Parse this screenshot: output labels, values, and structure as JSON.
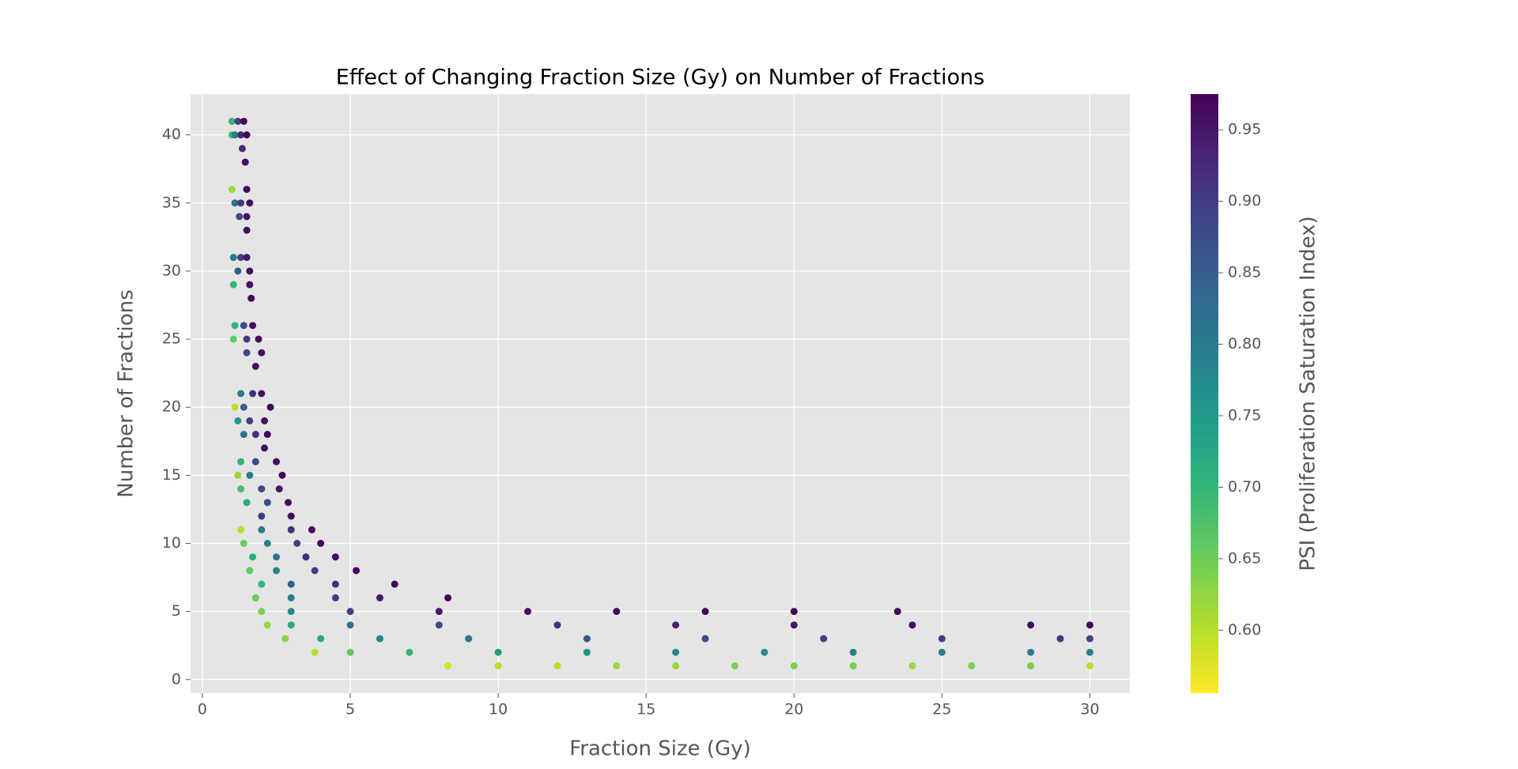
{
  "chart_data": {
    "type": "scatter",
    "title": "Effect of Changing Fraction Size (Gy) on Number of Fractions",
    "xlabel": "Fraction Size (Gy)",
    "ylabel": "Number of Fractions",
    "colorbar_label": "PSI (Proliferation Saturation Index)",
    "colormap": "viridis_r",
    "background": "#e5e5e5",
    "grid": true,
    "xlim": [
      -0.4,
      31.35
    ],
    "ylim": [
      -1,
      43
    ],
    "clim": [
      0.556,
      0.975
    ],
    "xticks": [
      0,
      5,
      10,
      15,
      20,
      25,
      30
    ],
    "yticks": [
      0,
      5,
      10,
      15,
      20,
      25,
      30,
      35,
      40
    ],
    "cticks": [
      {
        "value": 0.6,
        "label": "0.60"
      },
      {
        "value": 0.65,
        "label": "0.65"
      },
      {
        "value": 0.7,
        "label": "0.70"
      },
      {
        "value": 0.75,
        "label": "0.75"
      },
      {
        "value": 0.8,
        "label": "0.80"
      },
      {
        "value": 0.85,
        "label": "0.85"
      },
      {
        "value": 0.9,
        "label": "0.90"
      },
      {
        "value": 0.95,
        "label": "0.95"
      }
    ],
    "x": [
      1.0,
      1.2,
      1.4,
      1.0,
      1.1,
      1.3,
      1.5,
      1.35,
      1.45,
      1.0,
      1.5,
      1.1,
      1.3,
      1.6,
      1.25,
      1.5,
      1.5,
      1.05,
      1.3,
      1.5,
      1.2,
      1.6,
      1.05,
      1.6,
      1.65,
      1.1,
      1.4,
      1.7,
      1.05,
      1.5,
      1.9,
      1.5,
      2.0,
      1.8,
      1.3,
      1.7,
      2.0,
      1.1,
      1.4,
      2.3,
      1.2,
      1.6,
      2.1,
      1.4,
      1.8,
      2.2,
      2.1,
      1.3,
      1.8,
      2.5,
      1.2,
      1.6,
      2.7,
      1.3,
      2.0,
      2.6,
      1.5,
      2.2,
      2.9,
      2.0,
      3.0,
      1.3,
      2.0,
      3.0,
      3.7,
      1.4,
      2.2,
      3.2,
      4.0,
      1.7,
      2.5,
      3.5,
      4.5,
      1.6,
      2.5,
      3.8,
      5.2,
      2.0,
      3.0,
      4.5,
      6.5,
      1.8,
      3.0,
      4.5,
      6.0,
      8.3,
      2.0,
      3.0,
      5.0,
      8.0,
      11,
      14,
      17,
      20,
      23.5,
      2.2,
      3,
      5,
      8,
      12,
      16,
      20,
      24,
      28,
      30,
      2.8,
      4,
      6,
      9,
      13,
      17,
      21,
      25,
      29,
      30,
      3.8,
      5,
      7,
      10,
      13,
      16,
      19,
      22,
      25,
      28,
      30,
      8.3,
      10,
      12,
      14,
      16,
      18,
      20,
      22,
      24,
      26,
      28,
      30
    ],
    "y": [
      41,
      41,
      41,
      40,
      40,
      40,
      40,
      39,
      38,
      36,
      36,
      35,
      35,
      35,
      34,
      34,
      33,
      31,
      31,
      31,
      30,
      30,
      29,
      29,
      28,
      26,
      26,
      26,
      25,
      25,
      25,
      24,
      24,
      23,
      21,
      21,
      21,
      20,
      20,
      20,
      19,
      19,
      19,
      18,
      18,
      18,
      17,
      16,
      16,
      16,
      15,
      15,
      15,
      14,
      14,
      14,
      13,
      13,
      13,
      12,
      12,
      11,
      11,
      11,
      11,
      10,
      10,
      10,
      10,
      9,
      9,
      9,
      9,
      8,
      8,
      8,
      8,
      7,
      7,
      7,
      7,
      6,
      6,
      6,
      6,
      6,
      5,
      5,
      5,
      5,
      5,
      5,
      5,
      5,
      5,
      4,
      4,
      4,
      4,
      4,
      4,
      4,
      4,
      4,
      4,
      3,
      3,
      3,
      3,
      3,
      3,
      3,
      3,
      3,
      3,
      2,
      2,
      2,
      2,
      2,
      2,
      2,
      2,
      2,
      2,
      2,
      1,
      1,
      1,
      1,
      1,
      1,
      1,
      1,
      1,
      1,
      1,
      1
    ],
    "c": [
      0.7,
      0.9,
      0.97,
      0.68,
      0.8,
      0.93,
      0.97,
      0.93,
      0.96,
      0.62,
      0.97,
      0.82,
      0.9,
      0.96,
      0.88,
      0.96,
      0.96,
      0.8,
      0.9,
      0.95,
      0.85,
      0.96,
      0.7,
      0.96,
      0.97,
      0.7,
      0.88,
      0.96,
      0.66,
      0.9,
      0.96,
      0.88,
      0.96,
      0.96,
      0.8,
      0.92,
      0.96,
      0.6,
      0.85,
      0.97,
      0.75,
      0.9,
      0.96,
      0.82,
      0.92,
      0.97,
      0.96,
      0.7,
      0.88,
      0.96,
      0.62,
      0.8,
      0.97,
      0.68,
      0.88,
      0.95,
      0.72,
      0.88,
      0.96,
      0.9,
      0.97,
      0.6,
      0.8,
      0.92,
      0.97,
      0.65,
      0.78,
      0.9,
      0.97,
      0.72,
      0.82,
      0.92,
      0.96,
      0.66,
      0.78,
      0.9,
      0.97,
      0.7,
      0.85,
      0.92,
      0.97,
      0.65,
      0.8,
      0.9,
      0.95,
      0.97,
      0.64,
      0.78,
      0.9,
      0.95,
      0.96,
      0.97,
      0.97,
      0.97,
      0.97,
      0.62,
      0.72,
      0.82,
      0.88,
      0.92,
      0.94,
      0.95,
      0.96,
      0.96,
      0.97,
      0.63,
      0.72,
      0.78,
      0.82,
      0.86,
      0.88,
      0.9,
      0.9,
      0.91,
      0.89,
      0.6,
      0.66,
      0.7,
      0.74,
      0.76,
      0.78,
      0.78,
      0.8,
      0.8,
      0.8,
      0.8,
      0.58,
      0.6,
      0.6,
      0.62,
      0.62,
      0.64,
      0.64,
      0.64,
      0.62,
      0.64,
      0.64,
      0.6
    ]
  }
}
